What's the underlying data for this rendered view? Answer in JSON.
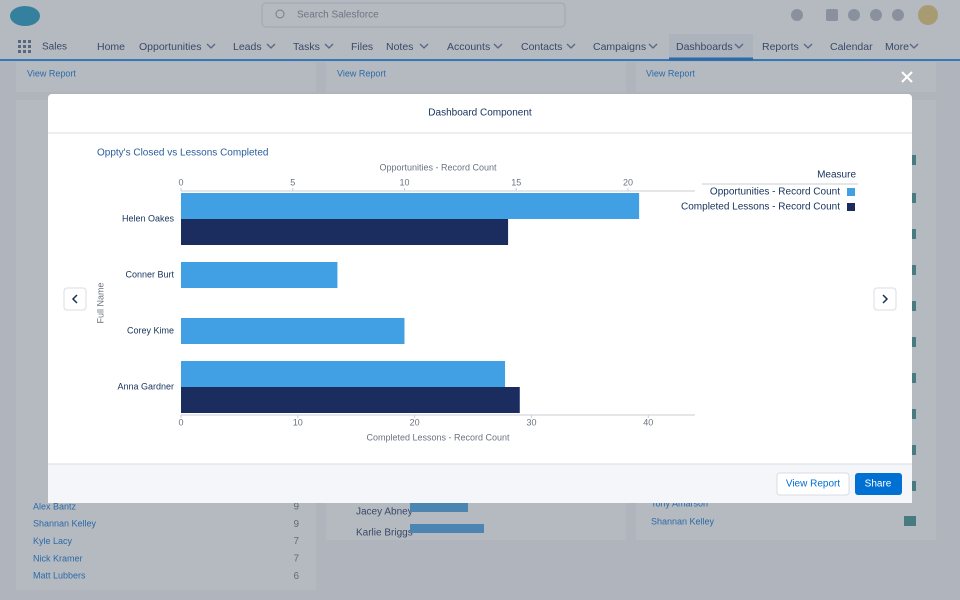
{
  "header": {
    "search_placeholder": "Search Salesforce"
  },
  "nav": {
    "app_name": "Sales",
    "items": [
      "Home",
      "Opportunities",
      "Leads",
      "Tasks",
      "Files",
      "Notes",
      "Accounts",
      "Contacts",
      "Campaigns",
      "Dashboards",
      "Reports",
      "Calendar",
      "More"
    ]
  },
  "background": {
    "view_report_links": [
      "View Report",
      "View Report",
      "View Report"
    ],
    "left_list": {
      "rows": [
        [
          "Alex Bantz",
          9
        ],
        [
          "Shannan Kelley",
          9
        ],
        [
          "Kyle Lacy",
          7
        ],
        [
          "Nick Kramer",
          7
        ],
        [
          "Matt Lubbers",
          6
        ]
      ]
    },
    "middle_list": [
      "Jacey Abney",
      "Karlie Briggs"
    ],
    "right_list": [
      "Tony Amarson",
      "Shannan Kelley"
    ]
  },
  "modal": {
    "title": "Dashboard Component",
    "buttons": [
      "View Report",
      "Share"
    ]
  },
  "chart_data": {
    "type": "bar",
    "orientation": "horizontal",
    "title": "Oppty's Closed vs Lessons Completed",
    "xlabel": "Opportunities - Record Count",
    "x2label": "Completed Lessons - Record Count",
    "ylabel": "Full Name",
    "categories": [
      "Helen Oakes",
      "Conner Burt",
      "Corey Kime",
      "Anna Gardner"
    ],
    "series": [
      {
        "name": "Opportunities - Record Count",
        "color": "#41a0e3",
        "values": [
          20.5,
          7,
          10,
          14.5
        ],
        "axis": "x"
      },
      {
        "name": "Completed Lessons - Record Count",
        "color": "#1b2d5e",
        "values": [
          28,
          null,
          null,
          29
        ],
        "axis": "x2"
      }
    ],
    "xlim": [
      0,
      23
    ],
    "xticks": [
      0,
      5,
      10,
      15,
      20
    ],
    "x2lim": [
      0,
      44
    ],
    "x2ticks": [
      0,
      10,
      20,
      30,
      40
    ],
    "legend_title": "Measure",
    "legend": "top-right"
  }
}
